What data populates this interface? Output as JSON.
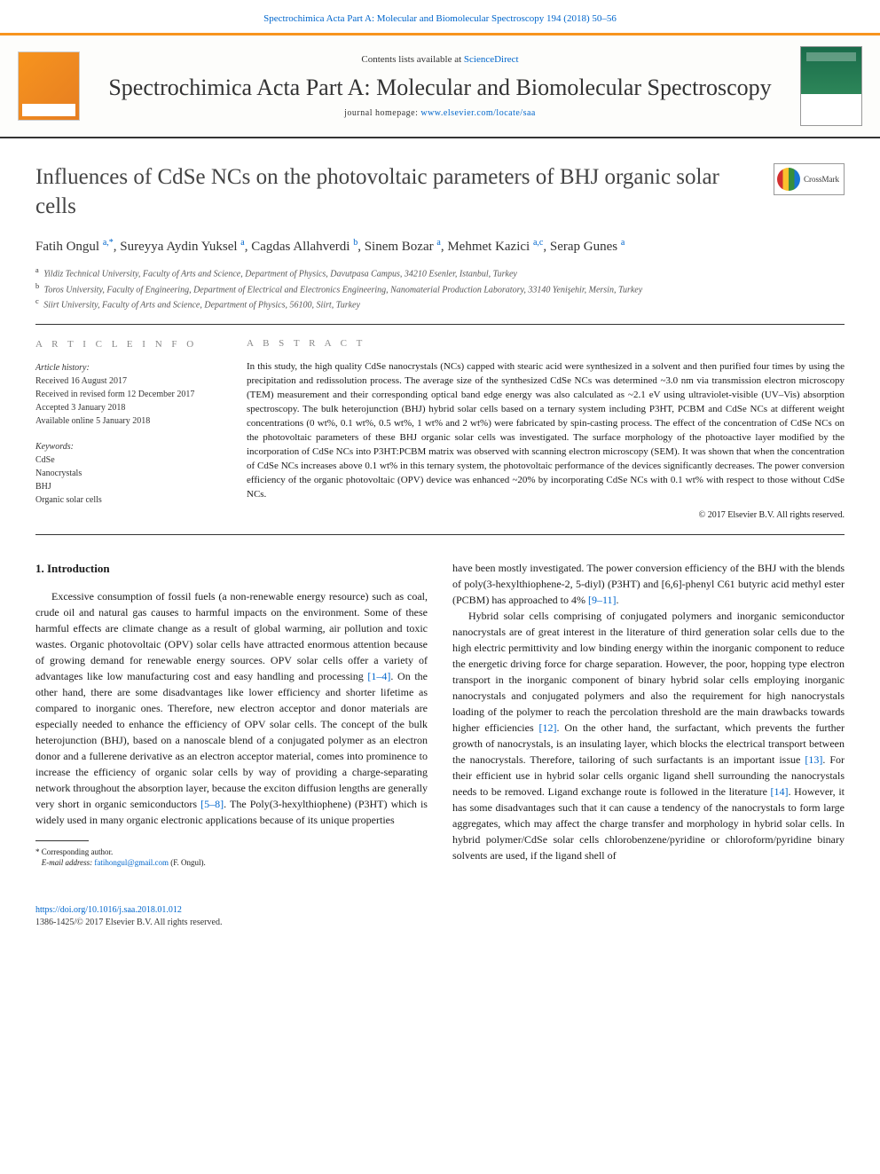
{
  "citation": {
    "text": "Spectrochimica Acta Part A: Molecular and Biomolecular Spectroscopy 194 (2018) 50–56",
    "color": "#0066cc"
  },
  "header": {
    "contents_prefix": "Contents lists available at ",
    "contents_link": "ScienceDirect",
    "journal_name": "Spectrochimica Acta Part A: Molecular and Biomolecular Spectroscopy",
    "homepage_prefix": "journal homepage: ",
    "homepage_link": "www.elsevier.com/locate/saa",
    "elsevier_label": "ELSEVIER",
    "band_border_color": "#f7941e",
    "cover_primary_color": "#1a6b4a",
    "cover_label": "SPECTROCHIMICA ACTA"
  },
  "article": {
    "title": "Influences of CdSe NCs on the photovoltaic parameters of BHJ organic solar cells",
    "crossmark_label": "CrossMark"
  },
  "authors_html": "Fatih Ongul <sup>a,*</sup>, Sureyya Aydin Yuksel <sup>a</sup>, Cagdas Allahverdi <sup>b</sup>, Sinem Bozar <sup>a</sup>, Mehmet Kazici <sup>a,c</sup>, Serap Gunes <sup>a</sup>",
  "affiliations": [
    {
      "sup": "a",
      "text": "Yildiz Technical University, Faculty of Arts and Science, Department of Physics, Davutpasa Campus, 34210 Esenler, Istanbul, Turkey"
    },
    {
      "sup": "b",
      "text": "Toros University, Faculty of Engineering, Department of Electrical and Electronics Engineering, Nanomaterial Production Laboratory, 33140 Yenişehir, Mersin, Turkey"
    },
    {
      "sup": "c",
      "text": "Siirt University, Faculty of Arts and Science, Department of Physics, 56100, Siirt, Turkey"
    }
  ],
  "meta": {
    "info_heading": "a r t i c l e   i n f o",
    "history_label": "Article history:",
    "history": [
      "Received 16 August 2017",
      "Received in revised form 12 December 2017",
      "Accepted 3 January 2018",
      "Available online 5 January 2018"
    ],
    "keywords_label": "Keywords:",
    "keywords": [
      "CdSe",
      "Nanocrystals",
      "BHJ",
      "Organic solar cells"
    ]
  },
  "abstract": {
    "heading": "a b s t r a c t",
    "text": "In this study, the high quality CdSe nanocrystals (NCs) capped with stearic acid were synthesized in a solvent and then purified four times by using the precipitation and redissolution process. The average size of the synthesized CdSe NCs was determined ~3.0 nm via transmission electron microscopy (TEM) measurement and their corresponding optical band edge energy was also calculated as ~2.1 eV using ultraviolet-visible (UV–Vis) absorption spectroscopy. The bulk heterojunction (BHJ) hybrid solar cells based on a ternary system including P3HT, PCBM and CdSe NCs at different weight concentrations (0 wt%, 0.1 wt%, 0.5 wt%, 1 wt% and 2 wt%) were fabricated by spin-casting process. The effect of the concentration of CdSe NCs on the photovoltaic parameters of these BHJ organic solar cells was investigated. The surface morphology of the photoactive layer modified by the incorporation of CdSe NCs into P3HT:PCBM matrix was observed with scanning electron microscopy (SEM). It was shown that when the concentration of CdSe NCs increases above 0.1 wt% in this ternary system, the photovoltaic performance of the devices significantly decreases. The power conversion efficiency of the organic photovoltaic (OPV) device was enhanced ~20% by incorporating CdSe NCs with 0.1 wt% with respect to those without CdSe NCs.",
    "copyright": "© 2017 Elsevier B.V. All rights reserved."
  },
  "body": {
    "section_heading": "1. Introduction",
    "left_para": "Excessive consumption of fossil fuels (a non-renewable energy resource) such as coal, crude oil and natural gas causes to harmful impacts on the environment. Some of these harmful effects are climate change as a result of global warming, air pollution and toxic wastes. Organic photovoltaic (OPV) solar cells have attracted enormous attention because of growing demand for renewable energy sources. OPV solar cells offer a variety of advantages like low manufacturing cost and easy handling and processing ",
    "left_ref1": "[1–4]",
    "left_para2": ". On the other hand, there are some disadvantages like lower efficiency and shorter lifetime as compared to inorganic ones. Therefore, new electron acceptor and donor materials are especially needed to enhance the efficiency of OPV solar cells. The concept of the bulk heterojunction (BHJ), based on a nanoscale blend of a conjugated polymer as an electron donor and a fullerene derivative as an electron acceptor material, comes into prominence to increase the efficiency of organic solar cells by way of providing a charge-separating network throughout the absorption layer, because the exciton diffusion lengths are generally very short in organic semiconductors ",
    "left_ref2": "[5–8]",
    "left_para3": ". The Poly(3-hexylthiophene) (P3HT) which is widely used in many organic electronic applications because of its unique properties",
    "right_para1a": "have been mostly investigated. The power conversion efficiency of the BHJ with the blends of poly(3-hexylthiophene-2, 5-diyl) (P3HT) and [6,6]-phenyl C61 butyric acid methyl ester (PCBM) has approached to 4% ",
    "right_ref1": "[9–11]",
    "right_para1b": ".",
    "right_para2a": "Hybrid solar cells comprising of conjugated polymers and inorganic semiconductor nanocrystals are of great interest in the literature of third generation solar cells due to the high electric permittivity and low binding energy within the inorganic component to reduce the energetic driving force for charge separation. However, the poor, hopping type electron transport in the inorganic component of binary hybrid solar cells employing inorganic nanocrystals and conjugated polymers and also the requirement for high nanocrystals loading of the polymer to reach the percolation threshold are the main drawbacks towards higher efficiencies ",
    "right_ref2": "[12]",
    "right_para2b": ". On the other hand, the surfactant, which prevents the further growth of nanocrystals, is an insulating layer, which blocks the electrical transport between the nanocrystals. Therefore, tailoring of such surfactants is an important issue ",
    "right_ref3": "[13]",
    "right_para2c": ". For their efficient use in hybrid solar cells organic ligand shell surrounding the nanocrystals needs to be removed. Ligand exchange route is followed in the literature ",
    "right_ref4": "[14]",
    "right_para2d": ". However, it has some disadvantages such that it can cause a tendency of the nanocrystals to form large aggregates, which may affect the charge transfer and morphology in hybrid solar cells. In hybrid polymer/CdSe solar cells chlorobenzene/pyridine or chloroform/pyridine binary solvents are used, if the ligand shell of"
  },
  "footnote": {
    "star": "*",
    "corr_label": "Corresponding author.",
    "email_label": "E-mail address:",
    "email": "fatihongul@gmail.com",
    "email_suffix": "(F. Ongul)."
  },
  "footer": {
    "doi": "https://doi.org/10.1016/j.saa.2018.01.012",
    "issn_line": "1386-1425/© 2017 Elsevier B.V. All rights reserved."
  },
  "colors": {
    "link": "#0066cc",
    "text": "#1a1a1a",
    "rule": "#333333"
  }
}
